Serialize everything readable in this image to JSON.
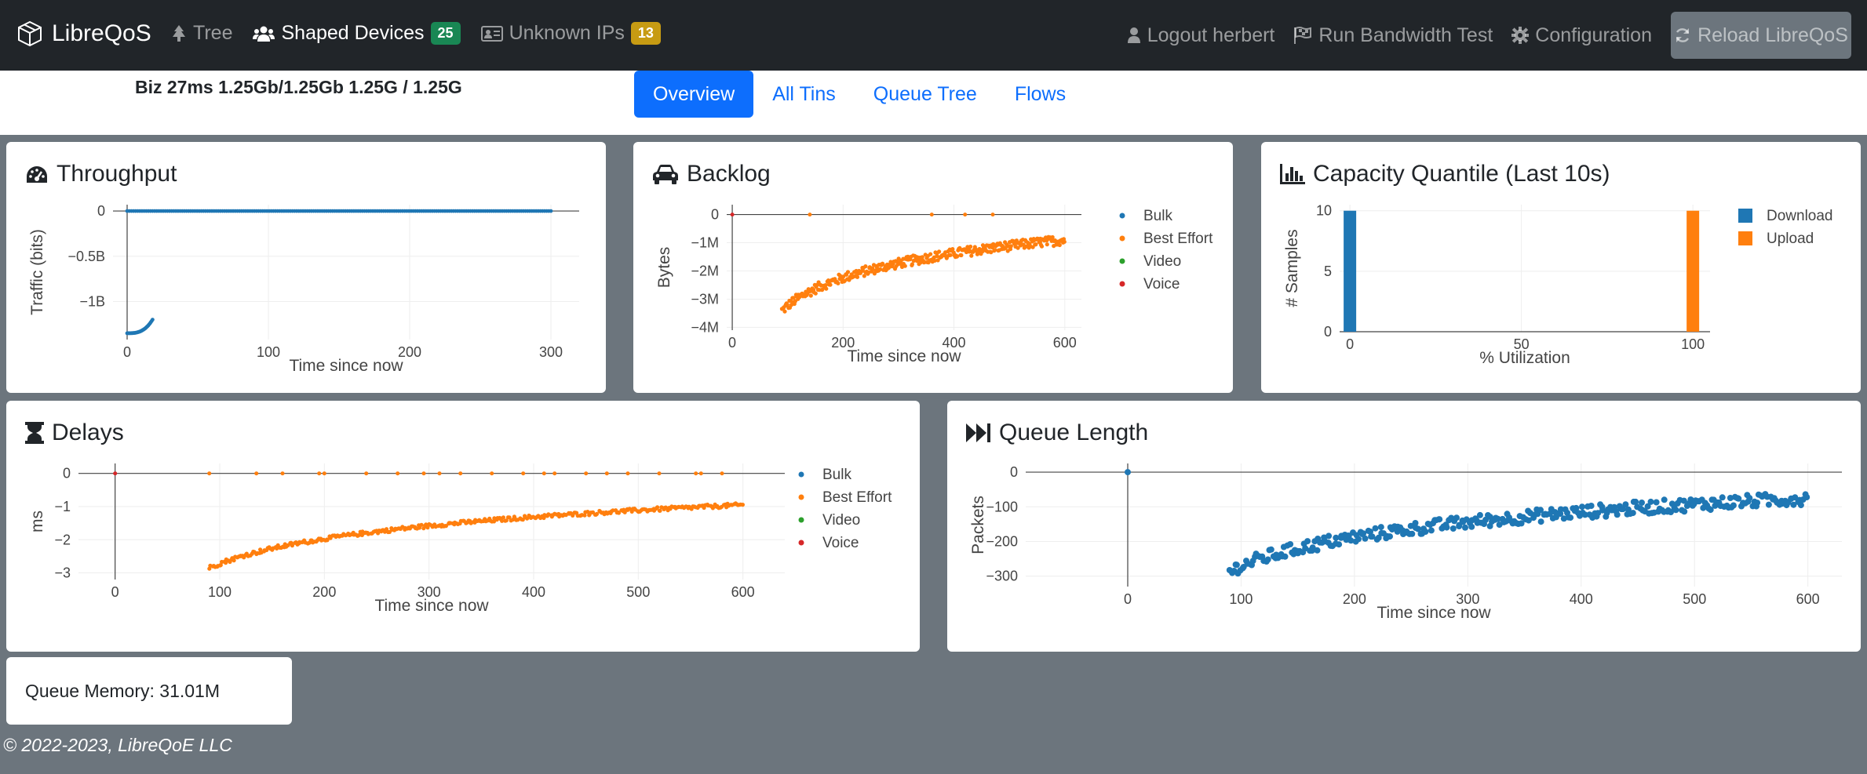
{
  "navbar": {
    "brand": "LibreQoS",
    "tree": "Tree",
    "shaped_devices": "Shaped Devices",
    "shaped_devices_count": "25",
    "unknown_ips": "Unknown IPs",
    "unknown_ips_count": "13",
    "logout": "Logout herbert",
    "bandwidth_test": "Run Bandwidth Test",
    "configuration": "Configuration",
    "reload": "Reload LibreQoS"
  },
  "circuit": {
    "info": "Biz 27ms 1.25Gb/1.25Gb 1.25G / 1.25G"
  },
  "tabs": [
    "Overview",
    "All Tins",
    "Queue Tree",
    "Flows"
  ],
  "cards": {
    "throughput": "Throughput",
    "backlog": "Backlog",
    "capacity": "Capacity Quantile (Last 10s)",
    "delays": "Delays",
    "queue_length": "Queue Length"
  },
  "memory": {
    "text": "Queue Memory: 31.01M"
  },
  "footer": {
    "text": "© 2022-2023, LibreQoE LLC"
  },
  "colors": {
    "bulk": "#1f77b4",
    "best_effort": "#ff7f0e",
    "video": "#2ca02c",
    "voice": "#d62728"
  },
  "chart_data": [
    {
      "id": "throughput",
      "type": "scatter",
      "xlabel": "Time since now",
      "ylabel": "Traffic (bits)",
      "xlim": [
        -10,
        320
      ],
      "ylim": [
        -1.42,
        0.07
      ],
      "x_ticks": [
        {
          "v": 0,
          "t": "0"
        },
        {
          "v": 100,
          "t": "100"
        },
        {
          "v": 200,
          "t": "200"
        },
        {
          "v": 300,
          "t": "300"
        }
      ],
      "y_ticks": [
        {
          "v": 0,
          "t": "0"
        },
        {
          "v": -0.5,
          "t": "−0.5B"
        },
        {
          "v": -1,
          "t": "−1B"
        }
      ],
      "series": [
        {
          "color": "#1f77b4",
          "fn": "const",
          "x0": 0,
          "x1": 300,
          "y": 0,
          "step": 1.5,
          "r": 2.4
        },
        {
          "color": "#1f77b4",
          "fn": "curve",
          "x0": 0,
          "x1": 18,
          "y0": -1.35,
          "y1": -1.2,
          "step": 0.6,
          "r": 2.4
        }
      ],
      "legend": []
    },
    {
      "id": "backlog",
      "type": "scatter",
      "xlabel": "Time since now",
      "ylabel": "Bytes",
      "xlim": [
        -10,
        630
      ],
      "ylim": [
        -4.1,
        0.35
      ],
      "x_ticks": [
        {
          "v": 0,
          "t": "0"
        },
        {
          "v": 200,
          "t": "200"
        },
        {
          "v": 400,
          "t": "400"
        },
        {
          "v": 600,
          "t": "600"
        }
      ],
      "y_ticks": [
        {
          "v": 0,
          "t": "0"
        },
        {
          "v": -1,
          "t": "−1M"
        },
        {
          "v": -2,
          "t": "−2M"
        },
        {
          "v": -3,
          "t": "−3M"
        },
        {
          "v": -4,
          "t": "−4M"
        }
      ],
      "series": [
        {
          "color": "#ff7f0e",
          "fn": "log",
          "x0": 90,
          "x1": 600,
          "y0": -3.4,
          "y1": -0.9,
          "step": 1.4,
          "noise": 0.35,
          "r": 2.6
        },
        {
          "color": "#ff7f0e",
          "fn": "points",
          "xs": [
            140,
            360,
            420,
            470
          ],
          "y": 0,
          "r": 2.5
        },
        {
          "color": "#d62728",
          "fn": "points",
          "xs": [
            0
          ],
          "y": 0,
          "r": 2.5
        }
      ],
      "legend": [
        "Bulk",
        "Best Effort",
        "Video",
        "Voice"
      ]
    },
    {
      "id": "capacity",
      "type": "bar",
      "xlabel": "% Utilization",
      "ylabel": "# Samples",
      "xlim": [
        -3,
        105
      ],
      "ylim": [
        0,
        10.5
      ],
      "x_ticks": [
        {
          "v": 0,
          "t": "0"
        },
        {
          "v": 50,
          "t": "50"
        },
        {
          "v": 100,
          "t": "100"
        }
      ],
      "y_ticks": [
        {
          "v": 0,
          "t": "0"
        },
        {
          "v": 5,
          "t": "5"
        },
        {
          "v": 10,
          "t": "10"
        }
      ],
      "series": [
        {
          "name": "Download",
          "color": "#1f77b4",
          "x": 0,
          "value": 10
        },
        {
          "name": "Upload",
          "color": "#ff7f0e",
          "x": 100,
          "value": 10
        }
      ],
      "legend": [
        "Download",
        "Upload"
      ]
    },
    {
      "id": "delays",
      "type": "scatter",
      "xlabel": "Time since now",
      "ylabel": "ms",
      "xlim": [
        -35,
        640
      ],
      "ylim": [
        -3.2,
        0.3
      ],
      "x_ticks": [
        {
          "v": 0,
          "t": "0"
        },
        {
          "v": 100,
          "t": "100"
        },
        {
          "v": 200,
          "t": "200"
        },
        {
          "v": 300,
          "t": "300"
        },
        {
          "v": 400,
          "t": "400"
        },
        {
          "v": 500,
          "t": "500"
        },
        {
          "v": 600,
          "t": "600"
        }
      ],
      "y_ticks": [
        {
          "v": 0,
          "t": "0"
        },
        {
          "v": -1,
          "t": "−1"
        },
        {
          "v": -2,
          "t": "−2"
        },
        {
          "v": -3,
          "t": "−3"
        }
      ],
      "series": [
        {
          "color": "#ff7f0e",
          "fn": "log",
          "x0": 90,
          "x1": 600,
          "y0": -2.85,
          "y1": -0.95,
          "step": 1.4,
          "noise": 0.12,
          "r": 2.6
        },
        {
          "color": "#ff7f0e",
          "fn": "points",
          "xs": [
            90,
            135,
            160,
            195,
            200,
            240,
            270,
            295,
            310,
            330,
            360,
            390,
            410,
            420,
            450,
            470,
            490,
            520,
            555,
            560,
            580
          ],
          "y": 0,
          "r": 2.5
        },
        {
          "color": "#d62728",
          "fn": "points",
          "xs": [
            0
          ],
          "y": 0,
          "r": 2.5
        }
      ],
      "legend": [
        "Bulk",
        "Best Effort",
        "Video",
        "Voice"
      ]
    },
    {
      "id": "queue_length",
      "type": "scatter",
      "xlabel": "Time since now",
      "ylabel": "Packets",
      "xlim": [
        -90,
        630
      ],
      "ylim": [
        -330,
        25
      ],
      "x_ticks": [
        {
          "v": 0,
          "t": "0"
        },
        {
          "v": 100,
          "t": "100"
        },
        {
          "v": 200,
          "t": "200"
        },
        {
          "v": 300,
          "t": "300"
        },
        {
          "v": 400,
          "t": "400"
        },
        {
          "v": 500,
          "t": "500"
        },
        {
          "v": 600,
          "t": "600"
        }
      ],
      "y_ticks": [
        {
          "v": 0,
          "t": "0"
        },
        {
          "v": -100,
          "t": "−100"
        },
        {
          "v": -200,
          "t": "−200"
        },
        {
          "v": -300,
          "t": "−300"
        }
      ],
      "series": [
        {
          "color": "#1f77b4",
          "fn": "log",
          "x0": 90,
          "x1": 600,
          "y0": -285,
          "y1": -75,
          "step": 1.6,
          "noise": 38,
          "r": 4
        },
        {
          "color": "#1f77b4",
          "fn": "points",
          "xs": [
            0
          ],
          "y": 0,
          "r": 4
        }
      ],
      "legend": []
    }
  ]
}
